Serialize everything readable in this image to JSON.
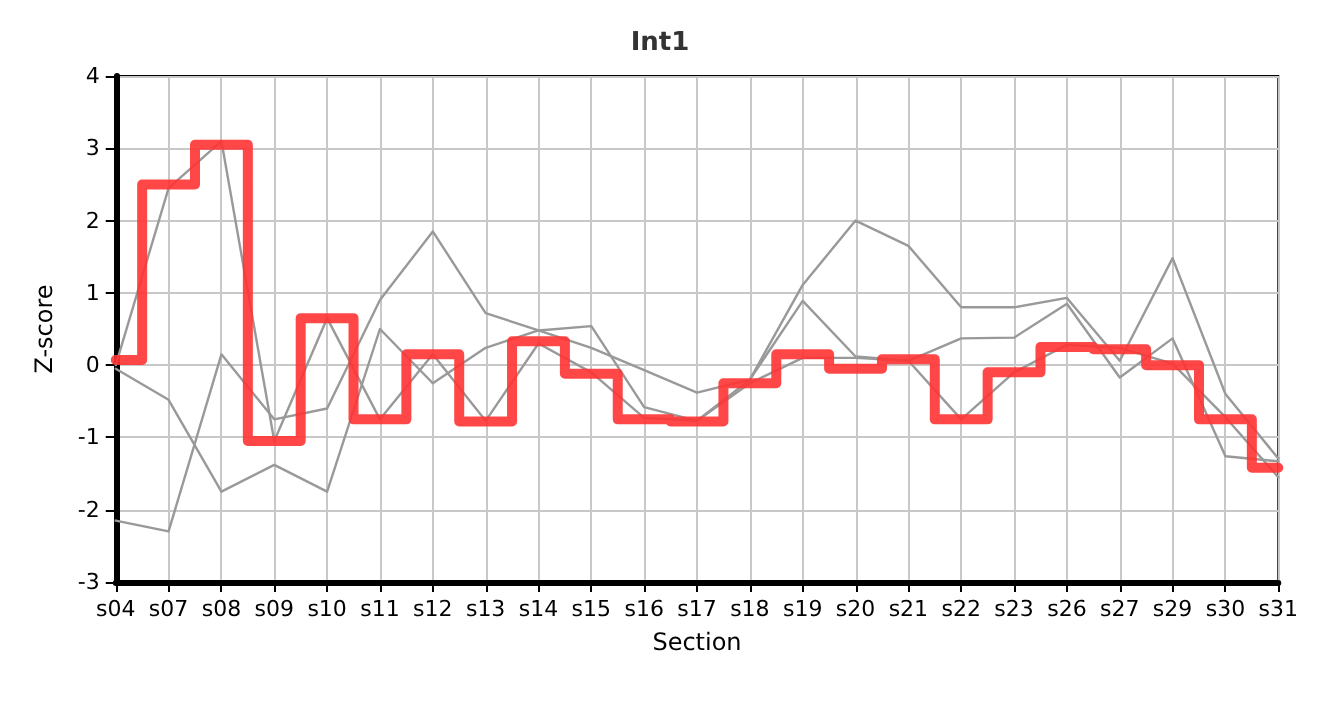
{
  "chart_data": {
    "type": "line",
    "title": "Int1",
    "xlabel": "Section",
    "ylabel": "Z-score",
    "categories": [
      "s04",
      "s07",
      "s08",
      "s09",
      "s10",
      "s11",
      "s12",
      "s13",
      "s14",
      "s15",
      "s16",
      "s17",
      "s18",
      "s19",
      "s20",
      "s21",
      "s22",
      "s23",
      "s26",
      "s27",
      "s29",
      "s30",
      "s31"
    ],
    "series": [
      {
        "color": "#999999",
        "values": [
          -2.15,
          -2.3,
          0.15,
          -0.75,
          -0.6,
          0.9,
          1.85,
          0.72,
          0.48,
          0.24,
          -0.07,
          -0.38,
          -0.2,
          1.11,
          2.0,
          1.65,
          0.8,
          0.8,
          0.93,
          0.06,
          1.48,
          -0.4,
          -1.29
        ]
      },
      {
        "color": "#999999",
        "values": [
          0,
          2.45,
          3.1,
          -1.05,
          0.65,
          -0.75,
          0.15,
          -0.77,
          0.3,
          -0.1,
          -0.73,
          -0.77,
          -0.25,
          0.1,
          0.1,
          0.06,
          -0.75,
          -0.1,
          0.28,
          0.24,
          0.02,
          -0.72,
          -1.55
        ]
      },
      {
        "color": "#999999",
        "values": [
          -0.05,
          -0.48,
          -1.75,
          -1.38,
          -1.75,
          0.5,
          -0.25,
          0.24,
          0.48,
          0.54,
          -0.58,
          -0.77,
          -0.2,
          0.89,
          0.12,
          0.06,
          0.37,
          0.38,
          0.85,
          -0.17,
          0.37,
          -1.26,
          -1.33
        ]
      },
      {
        "type": "step",
        "color": "#ff3333",
        "values": [
          0.07,
          2.5,
          3.05,
          -1.05,
          0.65,
          -0.75,
          0.15,
          -0.78,
          0.33,
          -0.12,
          -0.75,
          -0.78,
          -0.25,
          0.15,
          -0.05,
          0.08,
          -0.75,
          -0.1,
          0.25,
          0.22,
          0,
          -0.75,
          -1.42
        ]
      }
    ],
    "ylim": [
      -3,
      4
    ],
    "yticks": [
      -3,
      -2,
      -1,
      0,
      1,
      2,
      3,
      4
    ],
    "grid": true,
    "marker": "none",
    "line_style": "solid"
  }
}
